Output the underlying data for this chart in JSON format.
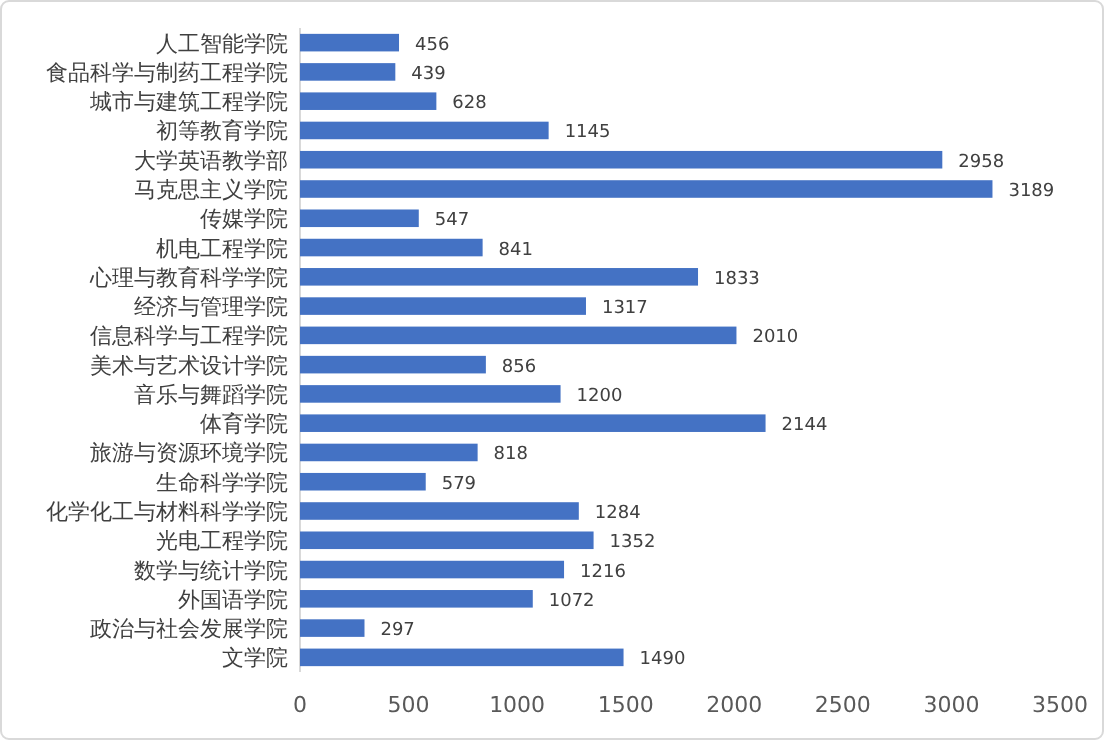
{
  "chart_data": {
    "type": "bar",
    "orientation": "horizontal",
    "categories": [
      "人工智能学院",
      "食品科学与制药工程学院",
      "城市与建筑工程学院",
      "初等教育学院",
      "大学英语教学部",
      "马克思主义学院",
      "传媒学院",
      "机电工程学院",
      "心理与教育科学学院",
      "经济与管理学院",
      "信息科学与工程学院",
      "美术与艺术设计学院",
      "音乐与舞蹈学院",
      "体育学院",
      "旅游与资源环境学院",
      "生命科学学院",
      "化学化工与材料科学学院",
      "光电工程学院",
      "数学与统计学院",
      "外国语学院",
      "政治与社会发展学院",
      "文学院"
    ],
    "values": [
      456,
      439,
      628,
      1145,
      2958,
      3189,
      547,
      841,
      1833,
      1317,
      2010,
      856,
      1200,
      2144,
      818,
      579,
      1284,
      1352,
      1216,
      1072,
      297,
      1490
    ],
    "color": "#4472c4",
    "xlim": [
      0,
      3500
    ],
    "xticks": [
      0,
      500,
      1000,
      1500,
      2000,
      2500,
      3000,
      3500
    ],
    "data_labels": true
  }
}
